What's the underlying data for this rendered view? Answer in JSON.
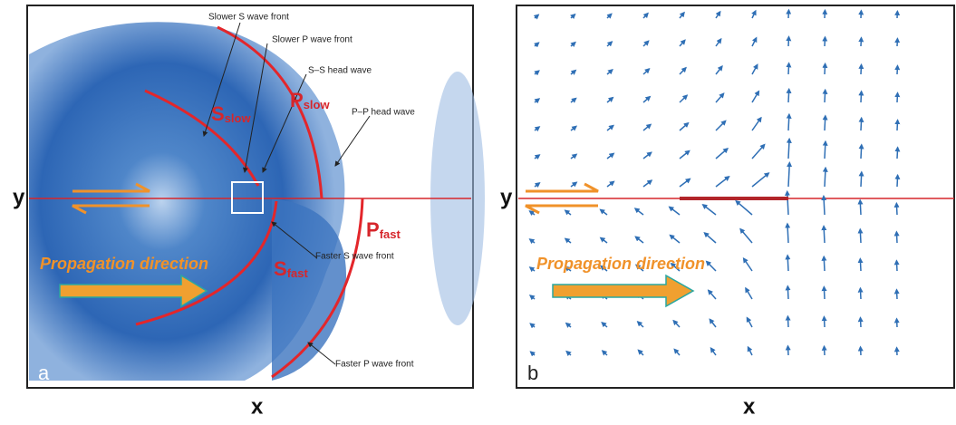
{
  "panel_a": {
    "letter": "a",
    "y_label": "y",
    "x_label": "x",
    "annotations": [
      "Slower S wave front",
      "Slower P wave front",
      "S–S head wave",
      "P–P head wave",
      "Faster S wave front",
      "Faster P wave front"
    ],
    "wave_labels": [
      {
        "main": "S",
        "sub": "slow"
      },
      {
        "main": "P",
        "sub": "slow"
      },
      {
        "main": "S",
        "sub": "fast"
      },
      {
        "main": "P",
        "sub": "fast"
      }
    ],
    "propagation": "Propagation direction"
  },
  "panel_b": {
    "letter": "b",
    "y_label": "y",
    "x_label": "x",
    "propagation": "Propagation direction"
  }
}
